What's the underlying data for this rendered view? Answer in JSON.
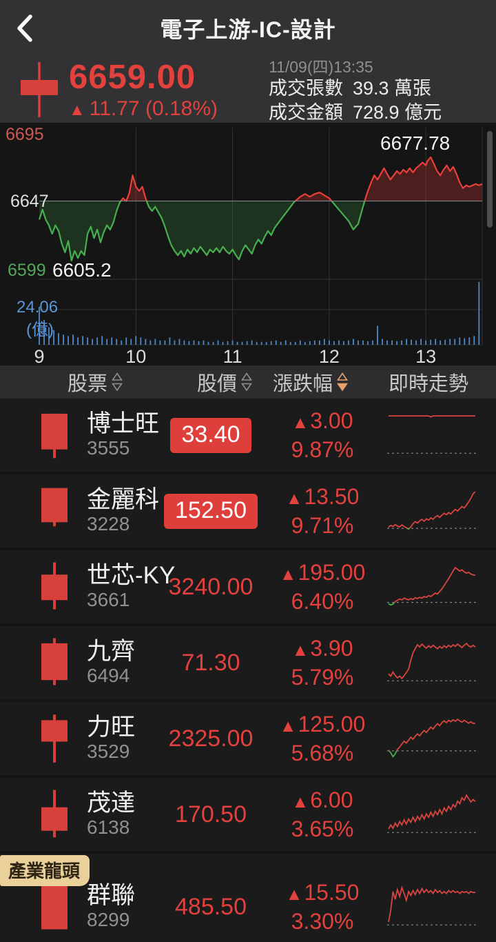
{
  "colors": {
    "red": "#e2413d",
    "green": "#47b04e",
    "blue_volume": "#4e8cc9",
    "orange_sort": "#e8a269",
    "panel": "#323234",
    "chart_bg": "#151515",
    "row_bg": "#1b1b1b",
    "badge_bg": "#e9d199"
  },
  "nav": {
    "title": "電子上游-IC-設計",
    "back_icon": "chevron-left-icon"
  },
  "summary": {
    "price": "6659.00",
    "arrow": "▲",
    "change": "11.77 (0.18%)",
    "time": "11/09(四)13:35",
    "stats": [
      {
        "label": "成交張數",
        "value": "39.3 萬張"
      },
      {
        "label": "成交金額",
        "value": "728.9 億元"
      }
    ],
    "candle_icon": "red-candlestick-icon"
  },
  "chart_data": {
    "type": "line",
    "title": "電子上游-IC-設計 intraday index with volume",
    "prev_close": 6647,
    "y_axis": {
      "ticks": [
        {
          "label": "6695",
          "color": "#cc5a53"
        },
        {
          "label": "6647",
          "color": "#e0e0e0"
        },
        {
          "label": "6599",
          "color": "#54a65b"
        }
      ],
      "ylim": [
        6599,
        6695
      ]
    },
    "x_axis": {
      "ticks": [
        "9",
        "10",
        "11",
        "12",
        "13"
      ],
      "tlim_min": [
        540,
        815
      ]
    },
    "volume_axis": {
      "tick_label": "24.06",
      "unit_label": "(億)",
      "tick_value": 24.06
    },
    "annotations": {
      "high": "6677.78",
      "low": "6605.2"
    },
    "price_points": [
      [
        540,
        6634
      ],
      [
        542,
        6641
      ],
      [
        544,
        6634
      ],
      [
        546,
        6630
      ],
      [
        548,
        6624
      ],
      [
        550,
        6630
      ],
      [
        552,
        6626
      ],
      [
        554,
        6617
      ],
      [
        556,
        6611
      ],
      [
        558,
        6619
      ],
      [
        560,
        6605.2
      ],
      [
        562,
        6612
      ],
      [
        564,
        6607
      ],
      [
        566,
        6612
      ],
      [
        568,
        6609
      ],
      [
        570,
        6624
      ],
      [
        572,
        6629
      ],
      [
        574,
        6621
      ],
      [
        576,
        6627
      ],
      [
        578,
        6618
      ],
      [
        580,
        6625
      ],
      [
        582,
        6630
      ],
      [
        584,
        6627
      ],
      [
        586,
        6632
      ],
      [
        588,
        6640
      ],
      [
        590,
        6646
      ],
      [
        592,
        6649
      ],
      [
        594,
        6647
      ],
      [
        596,
        6653
      ],
      [
        598,
        6665
      ],
      [
        600,
        6657
      ],
      [
        602,
        6654
      ],
      [
        604,
        6657
      ],
      [
        606,
        6649
      ],
      [
        608,
        6643
      ],
      [
        610,
        6640
      ],
      [
        612,
        6643
      ],
      [
        614,
        6639
      ],
      [
        616,
        6635
      ],
      [
        618,
        6629
      ],
      [
        620,
        6622
      ],
      [
        622,
        6616
      ],
      [
        624,
        6612
      ],
      [
        626,
        6609
      ],
      [
        628,
        6612
      ],
      [
        630,
        6608
      ],
      [
        632,
        6613
      ],
      [
        634,
        6610
      ],
      [
        636,
        6614
      ],
      [
        638,
        6611
      ],
      [
        640,
        6615
      ],
      [
        642,
        6612
      ],
      [
        644,
        6609
      ],
      [
        646,
        6613
      ],
      [
        648,
        6611
      ],
      [
        650,
        6614
      ],
      [
        652,
        6611
      ],
      [
        654,
        6615
      ],
      [
        656,
        6612
      ],
      [
        658,
        6610
      ],
      [
        660,
        6613
      ],
      [
        662,
        6609
      ],
      [
        664,
        6606
      ],
      [
        666,
        6612
      ],
      [
        668,
        6616
      ],
      [
        670,
        6613
      ],
      [
        672,
        6610
      ],
      [
        674,
        6616
      ],
      [
        676,
        6620
      ],
      [
        678,
        6617
      ],
      [
        680,
        6622
      ],
      [
        682,
        6626
      ],
      [
        684,
        6623
      ],
      [
        686,
        6628
      ],
      [
        688,
        6631
      ],
      [
        690,
        6634
      ],
      [
        692,
        6637
      ],
      [
        694,
        6640
      ],
      [
        696,
        6643
      ],
      [
        698,
        6646
      ],
      [
        700,
        6648
      ],
      [
        702,
        6650
      ],
      [
        705,
        6652
      ],
      [
        708,
        6650
      ],
      [
        711,
        6652
      ],
      [
        714,
        6653
      ],
      [
        717,
        6651
      ],
      [
        720,
        6649
      ],
      [
        723,
        6645
      ],
      [
        726,
        6641
      ],
      [
        729,
        6637
      ],
      [
        732,
        6633
      ],
      [
        735,
        6627
      ],
      [
        738,
        6631
      ],
      [
        740,
        6639
      ],
      [
        742,
        6647
      ],
      [
        744,
        6654
      ],
      [
        746,
        6660
      ],
      [
        748,
        6665
      ],
      [
        750,
        6662
      ],
      [
        752,
        6666
      ],
      [
        754,
        6670
      ],
      [
        756,
        6666
      ],
      [
        758,
        6662
      ],
      [
        760,
        6665
      ],
      [
        762,
        6668
      ],
      [
        764,
        6666
      ],
      [
        766,
        6669
      ],
      [
        768,
        6667
      ],
      [
        770,
        6670
      ],
      [
        772,
        6667
      ],
      [
        774,
        6670
      ],
      [
        776,
        6672
      ],
      [
        778,
        6674
      ],
      [
        780,
        6672
      ],
      [
        781,
        6675
      ],
      [
        783,
        6677.78
      ],
      [
        785,
        6673
      ],
      [
        787,
        6668
      ],
      [
        789,
        6665
      ],
      [
        791,
        6669
      ],
      [
        793,
        6672
      ],
      [
        795,
        6668
      ],
      [
        797,
        6671
      ],
      [
        799,
        6666
      ],
      [
        801,
        6660
      ],
      [
        803,
        6656
      ],
      [
        805,
        6658
      ],
      [
        807,
        6657
      ],
      [
        809,
        6658
      ],
      [
        811,
        6659
      ],
      [
        813,
        6658
      ],
      [
        815,
        6659
      ]
    ],
    "volume_series": {
      "start_min": 540,
      "step_min": 3,
      "values": [
        26,
        17,
        12,
        10,
        8,
        7,
        6,
        7,
        5,
        6,
        5,
        4,
        5,
        6,
        4,
        5,
        4,
        3,
        5,
        4,
        6,
        5,
        4,
        3,
        4,
        3,
        3,
        5,
        3,
        4,
        3,
        2.5,
        3,
        2.5,
        3,
        2,
        2,
        3,
        2,
        2.5,
        3,
        2,
        2,
        2.5,
        3,
        2,
        2,
        2,
        2.5,
        3,
        2,
        3,
        2,
        2,
        3,
        2,
        2.5,
        3,
        3,
        4,
        3,
        2.5,
        3,
        2.5,
        3,
        4,
        3,
        3,
        2.5,
        3,
        13,
        4,
        3,
        3,
        2.5,
        3,
        4,
        3.5,
        3,
        4,
        3,
        3.5,
        4,
        3,
        3.5,
        4,
        4,
        5,
        4.5,
        5,
        6,
        43
      ]
    }
  },
  "table": {
    "headers": [
      {
        "label": "股票",
        "sort": "inactive"
      },
      {
        "label": "股價",
        "sort": "inactive"
      },
      {
        "label": "漲跌幅",
        "sort": "active"
      },
      {
        "label": "即時走勢",
        "sort": "none"
      }
    ],
    "arrow": "▲",
    "rows": [
      {
        "name": "博士旺",
        "code": "3555",
        "price": "33.40",
        "boxed": true,
        "change": "3.00",
        "pct": "9.87%",
        "candle_icon": "red-candlestick-icon",
        "candle": {
          "wt": 8,
          "bt": 8,
          "bb": 78,
          "wb": 95
        },
        "spark": [
          9.87,
          9.87,
          9.87,
          9.87,
          9.87,
          9.87,
          9.87,
          9.87,
          9.87,
          9.87,
          9.87,
          9.87,
          9.87,
          9.87,
          9.87,
          9.87,
          9.87,
          9.87,
          9.87,
          9.6,
          9.87,
          9.87,
          9.87,
          9.87,
          9.87,
          9.87,
          9.87,
          9.87,
          9.87,
          9.87,
          9.87,
          9.87,
          9.87,
          9.87,
          9.87,
          9.87,
          9.87,
          9.87,
          9.87,
          9.87
        ]
      },
      {
        "name": "金麗科",
        "code": "3228",
        "price": "152.50",
        "boxed": true,
        "change": "13.50",
        "pct": "9.71%",
        "candle_icon": "red-candlestick-icon",
        "candle": {
          "wt": 5,
          "bt": 5,
          "bb": 72,
          "wb": 80
        },
        "spark": [
          0.3,
          0.8,
          0.5,
          1.0,
          0.6,
          0.4,
          0.9,
          0.5,
          0.2,
          -0.2,
          0.4,
          1.2,
          1.8,
          1.4,
          2.0,
          2.4,
          1.9,
          2.5,
          2.2,
          2.8,
          2.4,
          3.0,
          3.4,
          2.9,
          3.5,
          4.0,
          3.6,
          4.2,
          3.8,
          4.5,
          5.0,
          4.6,
          5.2,
          5.8,
          5.4,
          6.2,
          7.0,
          8.0,
          9.2,
          9.71
        ]
      },
      {
        "name": "世芯-KY",
        "code": "3661",
        "price": "3240.00",
        "boxed": false,
        "change": "195.00",
        "pct": "6.40%",
        "candle_icon": "red-candlestick-icon",
        "candle": {
          "wt": 2,
          "bt": 26,
          "bb": 76,
          "wb": 94
        },
        "spark": [
          -0.3,
          -0.6,
          -0.4,
          0.2,
          0.5,
          0.8,
          0.6,
          1.0,
          0.8,
          0.6,
          0.9,
          0.7,
          1.1,
          0.9,
          1.2,
          1.0,
          1.4,
          1.2,
          1.6,
          1.4,
          1.8,
          2.2,
          2.0,
          2.6,
          3.2,
          4.0,
          4.8,
          5.6,
          6.5,
          7.4,
          8.2,
          7.8,
          7.4,
          7.7,
          7.2,
          6.9,
          7.1,
          6.7,
          6.5,
          6.4
        ]
      },
      {
        "name": "九齊",
        "code": "6494",
        "price": "71.30",
        "boxed": false,
        "change": "3.90",
        "pct": "5.79%",
        "candle_icon": "red-candlestick-icon",
        "candle": {
          "wt": 2,
          "bt": 12,
          "bb": 84,
          "wb": 94
        },
        "spark": [
          1.2,
          0.8,
          1.5,
          0.9,
          0.5,
          0.8,
          0.4,
          0.9,
          1.4,
          2.0,
          3.5,
          4.8,
          5.5,
          6.2,
          5.8,
          6.3,
          5.9,
          5.6,
          6.0,
          5.7,
          6.1,
          5.8,
          5.5,
          5.9,
          5.6,
          6.0,
          5.7,
          6.1,
          5.8,
          6.2,
          5.9,
          6.3,
          6.0,
          5.7,
          6.1,
          6.4,
          6.0,
          5.8,
          6.1,
          5.79
        ]
      },
      {
        "name": "力旺",
        "code": "3529",
        "price": "2325.00",
        "boxed": false,
        "change": "125.00",
        "pct": "5.68%",
        "candle_icon": "red-candlestick-icon",
        "candle": {
          "wt": 3,
          "bt": 14,
          "bb": 56,
          "wb": 97
        },
        "spark": [
          0.2,
          -0.4,
          -1.2,
          -0.6,
          0.3,
          0.8,
          1.4,
          2.0,
          1.6,
          2.2,
          2.8,
          2.4,
          3.0,
          3.5,
          3.1,
          3.7,
          4.2,
          3.8,
          4.4,
          4.9,
          4.5,
          5.1,
          5.6,
          5.2,
          5.8,
          6.2,
          5.8,
          6.3,
          6.0,
          6.4,
          6.1,
          6.5,
          6.2,
          5.9,
          6.3,
          6.0,
          5.7,
          6.0,
          5.65,
          5.68
        ]
      },
      {
        "name": "茂達",
        "code": "6138",
        "price": "170.50",
        "boxed": false,
        "change": "6.00",
        "pct": "3.65%",
        "candle_icon": "red-candlestick-icon",
        "candle": {
          "wt": 2,
          "bt": 36,
          "bb": 82,
          "wb": 95
        },
        "spark": [
          0.4,
          0.9,
          0.5,
          1.1,
          0.7,
          1.3,
          0.9,
          1.5,
          1.0,
          1.6,
          1.2,
          1.8,
          1.3,
          1.9,
          1.5,
          2.1,
          1.6,
          2.2,
          1.8,
          2.4,
          1.9,
          2.5,
          2.1,
          2.7,
          2.2,
          2.9,
          2.5,
          3.1,
          2.7,
          3.3,
          3.0,
          3.7,
          3.4,
          4.1,
          3.8,
          4.4,
          4.0,
          3.6,
          3.9,
          3.65
        ]
      },
      {
        "name": "群聯",
        "code": "8299",
        "price": "485.50",
        "boxed": false,
        "change": "15.50",
        "pct": "3.30%",
        "badge": "產業龍頭",
        "candle_icon": "red-candlestick-icon",
        "candle": {
          "wt": 6,
          "bt": 6,
          "bb": 94,
          "wb": 94
        },
        "spark": [
          0.3,
          1.5,
          3.4,
          2.6,
          3.6,
          2.9,
          3.8,
          3.2,
          2.5,
          3.4,
          3.0,
          3.5,
          3.1,
          3.6,
          3.2,
          3.7,
          3.3,
          3.6,
          3.3,
          3.5,
          3.2,
          3.6,
          3.3,
          3.5,
          3.2,
          3.4,
          3.2,
          3.5,
          3.3,
          3.5,
          3.3,
          3.4,
          3.2,
          3.4,
          3.3,
          3.4,
          3.2,
          3.4,
          3.3,
          3.3
        ]
      }
    ]
  }
}
